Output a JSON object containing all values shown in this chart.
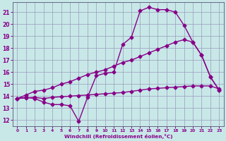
{
  "xlabel": "Windchill (Refroidissement éolien,°C)",
  "xlim": [
    -0.5,
    23.5
  ],
  "ylim": [
    11.5,
    21.8
  ],
  "yticks": [
    12,
    13,
    14,
    15,
    16,
    17,
    18,
    19,
    20,
    21
  ],
  "xticks": [
    0,
    1,
    2,
    3,
    4,
    5,
    6,
    7,
    8,
    9,
    10,
    11,
    12,
    13,
    14,
    15,
    16,
    17,
    18,
    19,
    20,
    21,
    22,
    23
  ],
  "bg_color": "#c8e8e8",
  "line_color": "#880088",
  "grid_color": "#9999bb",
  "line1_x": [
    0,
    1,
    2,
    3,
    4,
    5,
    6,
    7,
    8,
    9,
    10,
    11,
    12,
    13,
    14,
    15,
    16,
    17,
    18,
    19,
    20,
    21,
    22,
    23
  ],
  "line1_y": [
    13.8,
    13.9,
    13.8,
    13.5,
    13.3,
    13.3,
    13.2,
    11.9,
    13.9,
    15.7,
    15.9,
    16.0,
    18.3,
    18.9,
    21.1,
    21.4,
    21.2,
    21.2,
    21.0,
    19.9,
    18.5,
    17.4,
    15.6,
    14.5
  ],
  "line2_x": [
    0,
    1,
    2,
    3,
    4,
    5,
    6,
    7,
    8,
    9,
    10,
    11,
    12,
    13,
    14,
    15,
    16,
    17,
    18,
    19,
    20,
    21,
    22,
    23
  ],
  "line2_y": [
    13.8,
    13.85,
    13.9,
    13.8,
    13.9,
    13.95,
    14.0,
    14.05,
    14.1,
    14.15,
    14.2,
    14.25,
    14.3,
    14.4,
    14.5,
    14.6,
    14.65,
    14.7,
    14.75,
    14.8,
    14.85,
    14.85,
    14.85,
    14.6
  ],
  "line3_x": [
    0,
    1,
    2,
    3,
    4,
    5,
    6,
    7,
    8,
    9,
    10,
    11,
    12,
    13,
    14,
    15,
    16,
    17,
    18,
    19,
    20,
    21,
    22,
    23
  ],
  "line3_y": [
    13.8,
    14.1,
    14.4,
    14.5,
    14.7,
    15.0,
    15.2,
    15.5,
    15.8,
    16.0,
    16.2,
    16.5,
    16.8,
    17.0,
    17.3,
    17.6,
    17.9,
    18.2,
    18.5,
    18.7,
    18.5,
    17.4,
    15.6,
    14.5
  ],
  "marker": "D",
  "markersize": 2.5,
  "linewidth": 1.0
}
